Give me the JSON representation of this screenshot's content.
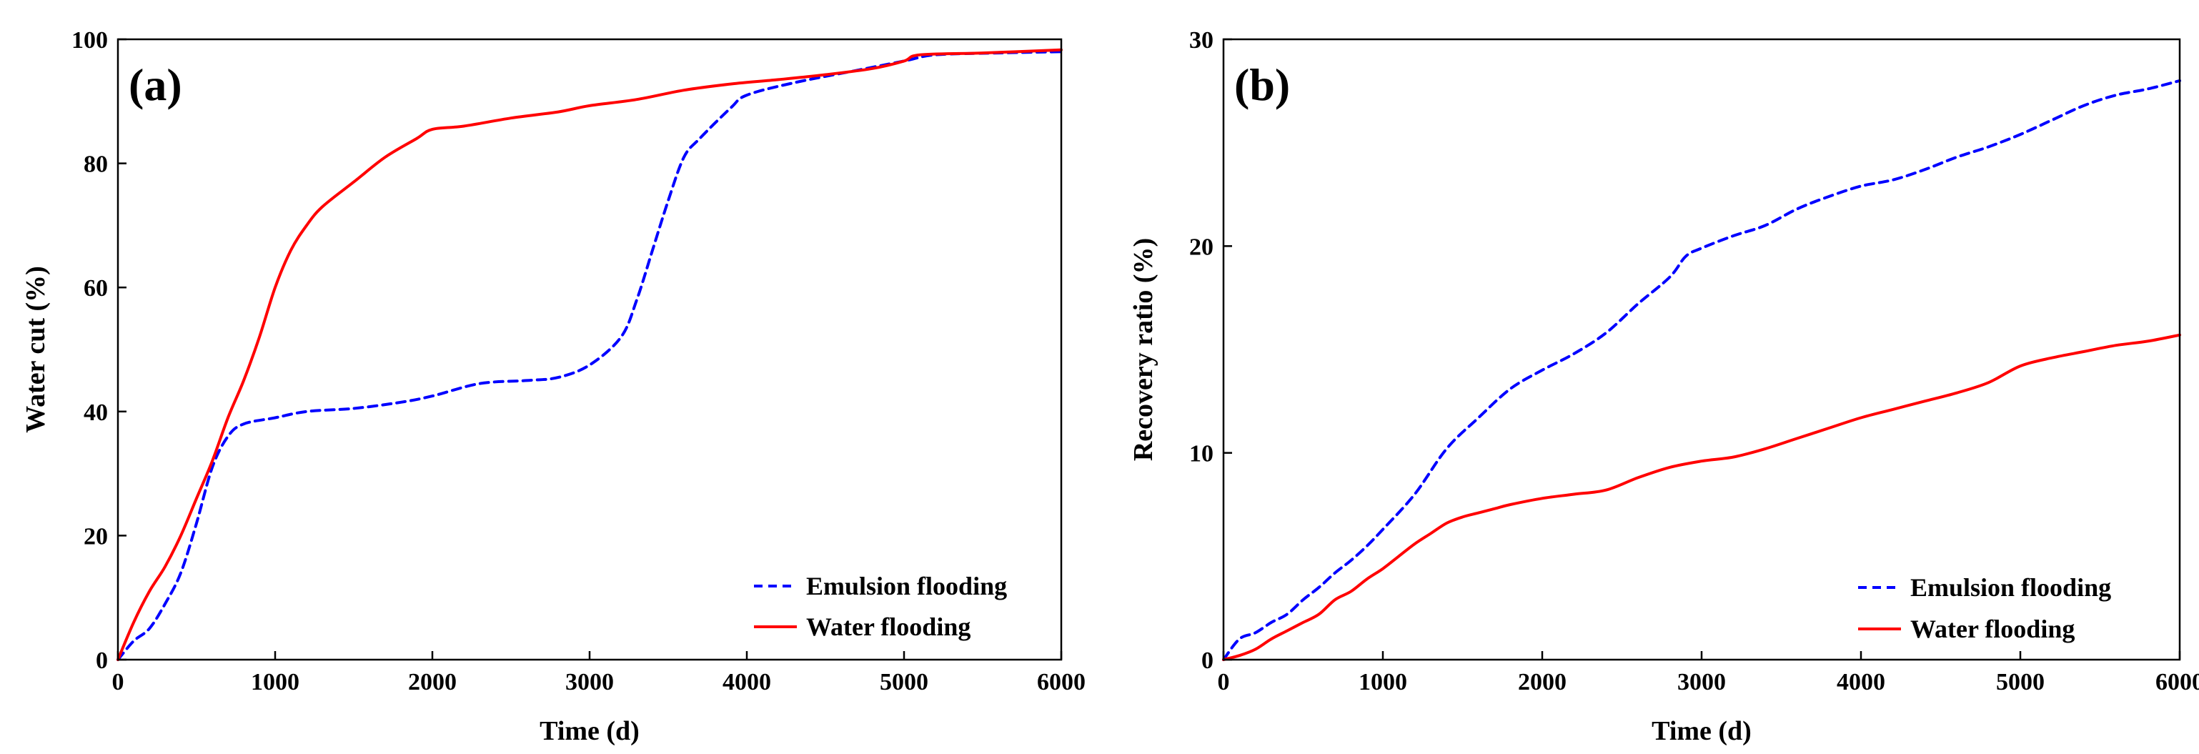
{
  "colors": {
    "emulsion": "#0000ff",
    "water": "#ff0000",
    "axes": "#000000"
  },
  "chart_data": [
    {
      "type": "line",
      "panel_label": "(a)",
      "xlabel": "Time (d)",
      "ylabel": "Water cut (%)",
      "xlim": [
        0,
        6000
      ],
      "ylim": [
        0,
        100
      ],
      "xticks": [
        0,
        1000,
        2000,
        3000,
        4000,
        5000,
        6000
      ],
      "yticks": [
        0,
        20,
        40,
        60,
        80,
        100
      ],
      "grid": false,
      "legend_position": "bottom-right",
      "series": [
        {
          "name": "Emulsion flooding",
          "color": "#0000ff",
          "dash": "dashed",
          "x": [
            0,
            100,
            200,
            300,
            400,
            500,
            600,
            700,
            800,
            1000,
            1200,
            1500,
            1800,
            2000,
            2300,
            2600,
            2800,
            3000,
            3200,
            3300,
            3400,
            3500,
            3600,
            3700,
            3900,
            4000,
            4300,
            4700,
            5000,
            5200,
            5600,
            6000
          ],
          "y": [
            0,
            3,
            5,
            9,
            14,
            22,
            31,
            36,
            38,
            39,
            40,
            40.5,
            41.5,
            42.5,
            44.5,
            45,
            45.5,
            47.5,
            52,
            58,
            66,
            74,
            81,
            84,
            89,
            91,
            93,
            95,
            96.5,
            97.5,
            97.8,
            98
          ]
        },
        {
          "name": "Water flooding",
          "color": "#ff0000",
          "dash": "solid",
          "x": [
            0,
            100,
            200,
            300,
            400,
            500,
            600,
            700,
            800,
            900,
            1000,
            1100,
            1200,
            1300,
            1500,
            1700,
            1900,
            2000,
            2200,
            2500,
            2800,
            3000,
            3300,
            3600,
            3900,
            4200,
            4500,
            4800,
            5000,
            5100,
            5500,
            6000
          ],
          "y": [
            0,
            6,
            11,
            15,
            20,
            26,
            32,
            39,
            45,
            52,
            60,
            66,
            70,
            73,
            77,
            81,
            84,
            85.5,
            86,
            87.3,
            88.3,
            89.3,
            90.3,
            91.8,
            92.8,
            93.5,
            94.3,
            95.3,
            96.5,
            97.5,
            97.8,
            98.3
          ]
        }
      ]
    },
    {
      "type": "line",
      "panel_label": "(b)",
      "xlabel": "Time (d)",
      "ylabel": "Recovery ratio (%)",
      "xlim": [
        0,
        6000
      ],
      "ylim": [
        0,
        30
      ],
      "xticks": [
        0,
        1000,
        2000,
        3000,
        4000,
        5000,
        6000
      ],
      "yticks": [
        0,
        10,
        20,
        30
      ],
      "grid": false,
      "legend_position": "bottom-right",
      "series": [
        {
          "name": "Emulsion flooding",
          "color": "#0000ff",
          "dash": "dashed",
          "x": [
            0,
            100,
            200,
            300,
            400,
            500,
            600,
            700,
            800,
            900,
            1000,
            1200,
            1400,
            1600,
            1800,
            2000,
            2200,
            2400,
            2600,
            2800,
            2900,
            3000,
            3200,
            3400,
            3600,
            3800,
            4000,
            4200,
            4400,
            4600,
            4800,
            5000,
            5200,
            5400,
            5600,
            5800,
            6000
          ],
          "y": [
            0,
            1,
            1.3,
            1.8,
            2.2,
            2.9,
            3.5,
            4.2,
            4.8,
            5.5,
            6.3,
            8,
            10.2,
            11.7,
            13.1,
            14,
            14.8,
            15.8,
            17.2,
            18.5,
            19.5,
            19.9,
            20.5,
            21,
            21.8,
            22.4,
            22.9,
            23.2,
            23.7,
            24.3,
            24.8,
            25.4,
            26.1,
            26.8,
            27.3,
            27.6,
            28
          ]
        },
        {
          "name": "Water flooding",
          "color": "#ff0000",
          "dash": "solid",
          "x": [
            0,
            100,
            200,
            300,
            400,
            500,
            600,
            700,
            800,
            900,
            1000,
            1100,
            1200,
            1300,
            1400,
            1500,
            1600,
            1700,
            1800,
            2000,
            2200,
            2400,
            2600,
            2800,
            3000,
            3200,
            3400,
            3600,
            3800,
            4000,
            4200,
            4400,
            4600,
            4800,
            5000,
            5200,
            5400,
            5600,
            5800,
            6000
          ],
          "y": [
            0,
            0.2,
            0.5,
            1,
            1.4,
            1.8,
            2.2,
            2.9,
            3.3,
            3.9,
            4.4,
            5,
            5.6,
            6.1,
            6.6,
            6.9,
            7.1,
            7.3,
            7.5,
            7.8,
            8,
            8.2,
            8.8,
            9.3,
            9.6,
            9.8,
            10.2,
            10.7,
            11.2,
            11.7,
            12.1,
            12.5,
            12.9,
            13.4,
            14.2,
            14.6,
            14.9,
            15.2,
            15.4,
            15.7
          ]
        }
      ]
    }
  ]
}
